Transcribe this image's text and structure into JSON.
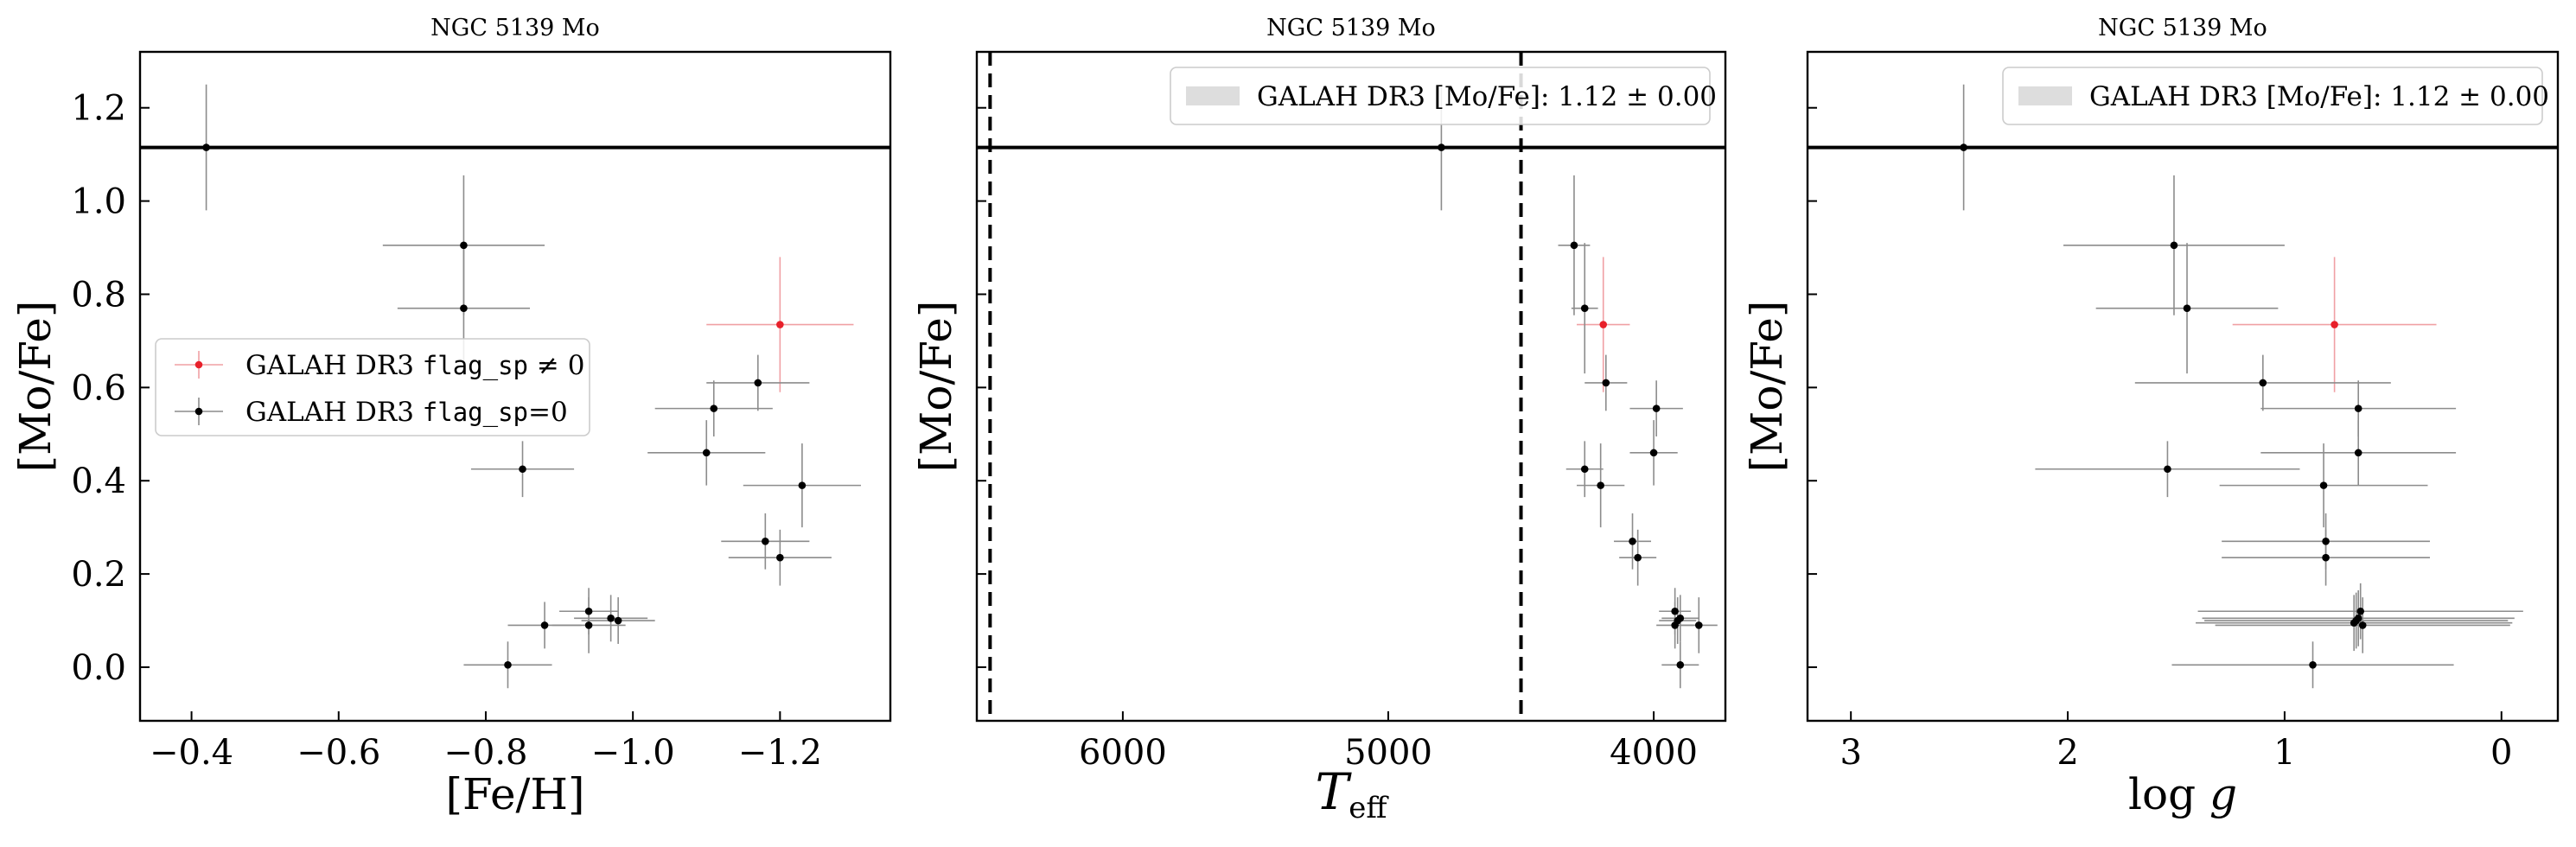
{
  "colors": {
    "flagged": "#e8202a",
    "normal": "#000000",
    "errorbar": "#8c8c8c",
    "band": "#dddddd",
    "line": "#000000"
  },
  "chart_data": [
    {
      "type": "scatter",
      "title": "NGC 5139 Mo",
      "xlabel": "[Fe/H]",
      "ylabel": "[Mo/Fe]",
      "xlim": [
        -0.33,
        -1.35
      ],
      "ylim": [
        -0.115,
        1.32
      ],
      "x_inverted": true,
      "xticks": [
        -0.4,
        -0.6,
        -0.8,
        -1.0,
        -1.2
      ],
      "xtick_labels": [
        "−0.4",
        "−0.6",
        "−0.8",
        "−1.0",
        "−1.2"
      ],
      "yticks": [
        0.0,
        0.2,
        0.4,
        0.6,
        0.8,
        1.0,
        1.2
      ],
      "ytick_labels": [
        "0.0",
        "0.2",
        "0.4",
        "0.6",
        "0.8",
        "1.0",
        "1.2"
      ],
      "show_ytick_labels": true,
      "hline": 1.115,
      "legend": {
        "placement": "center-left",
        "entries": [
          {
            "label_pre": "GALAH DR3 ",
            "label_mono": "flag_sp",
            "label_post": " ≠ 0",
            "color": "#e8202a"
          },
          {
            "label_pre": "GALAH DR3 ",
            "label_mono": "flag_sp",
            "label_post": "=0",
            "color": "#000000"
          }
        ]
      },
      "series": [
        {
          "name": "GALAH DR3 flag_sp ≠ 0",
          "color": "#e8202a",
          "points": [
            {
              "x": -1.2,
              "y": 0.735,
              "xerr": 0.1,
              "yerr": 0.145
            }
          ]
        },
        {
          "name": "GALAH DR3 flag_sp=0",
          "color": "#000000",
          "points": [
            {
              "x": -0.42,
              "y": 1.115,
              "xerr": 0.0,
              "yerr": 0.135
            },
            {
              "x": -0.77,
              "y": 0.905,
              "xerr": 0.11,
              "yerr": 0.15
            },
            {
              "x": -0.77,
              "y": 0.77,
              "xerr": 0.09,
              "yerr": 0.14
            },
            {
              "x": -1.17,
              "y": 0.61,
              "xerr": 0.07,
              "yerr": 0.06
            },
            {
              "x": -1.11,
              "y": 0.555,
              "xerr": 0.08,
              "yerr": 0.06
            },
            {
              "x": -1.1,
              "y": 0.46,
              "xerr": 0.08,
              "yerr": 0.07
            },
            {
              "x": -0.85,
              "y": 0.425,
              "xerr": 0.07,
              "yerr": 0.06
            },
            {
              "x": -1.23,
              "y": 0.39,
              "xerr": 0.08,
              "yerr": 0.09
            },
            {
              "x": -1.18,
              "y": 0.27,
              "xerr": 0.06,
              "yerr": 0.06
            },
            {
              "x": -1.2,
              "y": 0.235,
              "xerr": 0.07,
              "yerr": 0.06
            },
            {
              "x": -0.94,
              "y": 0.12,
              "xerr": 0.04,
              "yerr": 0.05
            },
            {
              "x": -0.97,
              "y": 0.105,
              "xerr": 0.05,
              "yerr": 0.05
            },
            {
              "x": -0.98,
              "y": 0.1,
              "xerr": 0.05,
              "yerr": 0.05
            },
            {
              "x": -0.88,
              "y": 0.09,
              "xerr": 0.05,
              "yerr": 0.05
            },
            {
              "x": -0.94,
              "y": 0.09,
              "xerr": 0.05,
              "yerr": 0.06
            },
            {
              "x": -0.83,
              "y": 0.005,
              "xerr": 0.06,
              "yerr": 0.05
            }
          ]
        }
      ]
    },
    {
      "type": "scatter",
      "title": "NGC 5139 Mo",
      "xlabel": "T_eff",
      "ylabel": "[Mo/Fe]",
      "xlim": [
        6550,
        3730
      ],
      "ylim": [
        -0.115,
        1.32
      ],
      "x_inverted": true,
      "xticks": [
        6000,
        5000,
        4000
      ],
      "xtick_labels": [
        "6000",
        "5000",
        "4000"
      ],
      "yticks": [
        0.0,
        0.2,
        0.4,
        0.6,
        0.8,
        1.0,
        1.2
      ],
      "ytick_labels": [
        "0.0",
        "0.2",
        "0.4",
        "0.6",
        "0.8",
        "1.0",
        "1.2"
      ],
      "show_ytick_labels": false,
      "hline": 1.115,
      "vlines": [
        6500,
        4500
      ],
      "legend": {
        "placement": "top-right",
        "entries": [
          {
            "label_pre": "GALAH DR3 [Mo/Fe]: 1.12 ± 0.00",
            "color": "#dddddd",
            "kind": "band"
          }
        ]
      },
      "series": [
        {
          "name": "GALAH DR3 flag_sp ≠ 0",
          "color": "#e8202a",
          "points": [
            {
              "x": 4190,
              "y": 0.735,
              "xerr": 100,
              "yerr": 0.145
            }
          ]
        },
        {
          "name": "GALAH DR3 flag_sp=0",
          "color": "#000000",
          "points": [
            {
              "x": 4800,
              "y": 1.115,
              "xerr": 0,
              "yerr": 0.135
            },
            {
              "x": 4300,
              "y": 0.905,
              "xerr": 60,
              "yerr": 0.15
            },
            {
              "x": 4260,
              "y": 0.77,
              "xerr": 50,
              "yerr": 0.14
            },
            {
              "x": 4180,
              "y": 0.61,
              "xerr": 80,
              "yerr": 0.06
            },
            {
              "x": 3990,
              "y": 0.555,
              "xerr": 100,
              "yerr": 0.06
            },
            {
              "x": 4000,
              "y": 0.46,
              "xerr": 90,
              "yerr": 0.07
            },
            {
              "x": 4260,
              "y": 0.425,
              "xerr": 70,
              "yerr": 0.06
            },
            {
              "x": 4200,
              "y": 0.39,
              "xerr": 90,
              "yerr": 0.09
            },
            {
              "x": 4080,
              "y": 0.27,
              "xerr": 70,
              "yerr": 0.06
            },
            {
              "x": 4060,
              "y": 0.235,
              "xerr": 70,
              "yerr": 0.06
            },
            {
              "x": 3920,
              "y": 0.12,
              "xerr": 60,
              "yerr": 0.05
            },
            {
              "x": 3900,
              "y": 0.105,
              "xerr": 70,
              "yerr": 0.05
            },
            {
              "x": 3910,
              "y": 0.1,
              "xerr": 70,
              "yerr": 0.05
            },
            {
              "x": 3920,
              "y": 0.09,
              "xerr": 70,
              "yerr": 0.05
            },
            {
              "x": 3830,
              "y": 0.09,
              "xerr": 70,
              "yerr": 0.06
            },
            {
              "x": 3900,
              "y": 0.005,
              "xerr": 70,
              "yerr": 0.05
            }
          ]
        }
      ]
    },
    {
      "type": "scatter",
      "title": "NGC 5139 Mo",
      "xlabel": "log g",
      "ylabel": "[Mo/Fe]",
      "xlim": [
        3.2,
        -0.26
      ],
      "ylim": [
        -0.115,
        1.32
      ],
      "x_inverted": true,
      "xticks": [
        3,
        2,
        1,
        0
      ],
      "xtick_labels": [
        "3",
        "2",
        "1",
        "0"
      ],
      "yticks": [
        0.0,
        0.2,
        0.4,
        0.6,
        0.8,
        1.0,
        1.2
      ],
      "ytick_labels": [
        "0.0",
        "0.2",
        "0.4",
        "0.6",
        "0.8",
        "1.0",
        "1.2"
      ],
      "show_ytick_labels": false,
      "hline": 1.115,
      "legend": {
        "placement": "top-right",
        "entries": [
          {
            "label_pre": "GALAH DR3 [Mo/Fe]: 1.12 ± 0.00",
            "color": "#dddddd",
            "kind": "band"
          }
        ]
      },
      "series": [
        {
          "name": "GALAH DR3 flag_sp ≠ 0",
          "color": "#e8202a",
          "points": [
            {
              "x": 0.77,
              "y": 0.735,
              "xerr": 0.47,
              "yerr": 0.145
            }
          ]
        },
        {
          "name": "GALAH DR3 flag_sp=0",
          "color": "#000000",
          "points": [
            {
              "x": 2.48,
              "y": 1.115,
              "xerr": 0.0,
              "yerr": 0.135
            },
            {
              "x": 1.51,
              "y": 0.905,
              "xerr": 0.51,
              "yerr": 0.15
            },
            {
              "x": 1.45,
              "y": 0.77,
              "xerr": 0.42,
              "yerr": 0.14
            },
            {
              "x": 1.1,
              "y": 0.61,
              "xerr": 0.59,
              "yerr": 0.06
            },
            {
              "x": 0.66,
              "y": 0.555,
              "xerr": 0.45,
              "yerr": 0.06
            },
            {
              "x": 0.66,
              "y": 0.46,
              "xerr": 0.45,
              "yerr": 0.07
            },
            {
              "x": 1.54,
              "y": 0.425,
              "xerr": 0.61,
              "yerr": 0.06
            },
            {
              "x": 0.82,
              "y": 0.39,
              "xerr": 0.48,
              "yerr": 0.09
            },
            {
              "x": 0.81,
              "y": 0.27,
              "xerr": 0.48,
              "yerr": 0.06
            },
            {
              "x": 0.81,
              "y": 0.235,
              "xerr": 0.48,
              "yerr": 0.06
            },
            {
              "x": 0.65,
              "y": 0.12,
              "xerr": 0.75,
              "yerr": 0.06
            },
            {
              "x": 0.66,
              "y": 0.105,
              "xerr": 0.72,
              "yerr": 0.06
            },
            {
              "x": 0.67,
              "y": 0.1,
              "xerr": 0.7,
              "yerr": 0.06
            },
            {
              "x": 0.64,
              "y": 0.09,
              "xerr": 0.68,
              "yerr": 0.06
            },
            {
              "x": 0.68,
              "y": 0.095,
              "xerr": 0.73,
              "yerr": 0.06
            },
            {
              "x": 0.87,
              "y": 0.005,
              "xerr": 0.65,
              "yerr": 0.05
            }
          ]
        }
      ]
    }
  ]
}
